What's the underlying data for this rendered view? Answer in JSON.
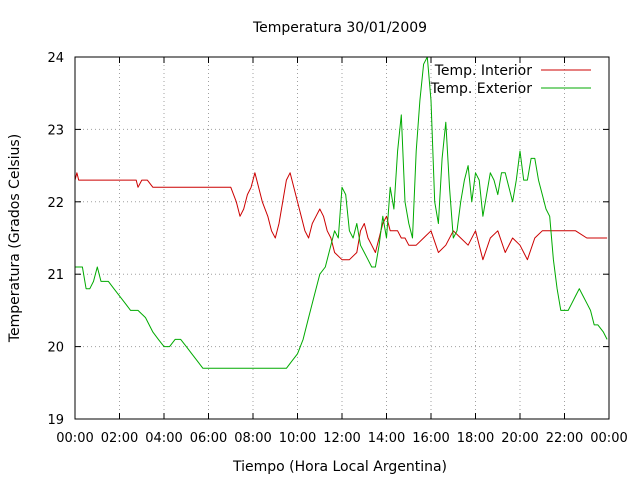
{
  "chart_data": {
    "type": "line",
    "title": "Temperatura 30/01/2009",
    "xlabel": "Tiempo (Hora Local Argentina)",
    "ylabel": "Temperatura (Grados Celsius)",
    "xlim": [
      "00:00",
      "24:00"
    ],
    "ylim": [
      19,
      24
    ],
    "grid": true,
    "legend_position": "top-right",
    "x_tick_labels": [
      "00:00",
      "02:00",
      "04:00",
      "06:00",
      "08:00",
      "10:00",
      "12:00",
      "14:00",
      "16:00",
      "18:00",
      "20:00",
      "22:00",
      "00:00"
    ],
    "y_tick_labels": [
      "19",
      "20",
      "21",
      "22",
      "23",
      "24"
    ],
    "series": [
      {
        "name": "Temp. Interior",
        "color": "#cc0000",
        "x": [
          "00:00",
          "00:05",
          "00:10",
          "00:15",
          "02:45",
          "02:50",
          "03:00",
          "03:15",
          "03:30",
          "03:45",
          "04:00",
          "05:30",
          "07:00",
          "07:15",
          "07:25",
          "07:35",
          "07:45",
          "07:55",
          "08:05",
          "08:15",
          "08:25",
          "08:40",
          "08:50",
          "09:00",
          "09:10",
          "09:20",
          "09:30",
          "09:40",
          "09:50",
          "10:00",
          "10:10",
          "10:20",
          "10:30",
          "10:40",
          "10:50",
          "11:00",
          "11:10",
          "11:20",
          "11:30",
          "11:40",
          "12:00",
          "12:20",
          "12:40",
          "12:50",
          "13:00",
          "13:10",
          "13:20",
          "13:30",
          "13:40",
          "13:50",
          "14:00",
          "14:10",
          "14:20",
          "14:30",
          "14:40",
          "14:50",
          "15:00",
          "15:20",
          "15:40",
          "16:00",
          "16:20",
          "16:40",
          "17:00",
          "17:20",
          "17:40",
          "18:00",
          "18:20",
          "18:40",
          "19:00",
          "19:20",
          "19:40",
          "20:00",
          "20:20",
          "20:40",
          "21:00",
          "21:20",
          "21:40",
          "22:00",
          "22:30",
          "23:00",
          "23:30",
          "23:55"
        ],
        "y": [
          22.3,
          22.4,
          22.3,
          22.3,
          22.3,
          22.2,
          22.3,
          22.3,
          22.2,
          22.2,
          22.2,
          22.2,
          22.2,
          22.0,
          21.8,
          21.9,
          22.1,
          22.2,
          22.4,
          22.2,
          22.0,
          21.8,
          21.6,
          21.5,
          21.7,
          22.0,
          22.3,
          22.4,
          22.2,
          22.0,
          21.8,
          21.6,
          21.5,
          21.7,
          21.8,
          21.9,
          21.8,
          21.6,
          21.5,
          21.3,
          21.2,
          21.2,
          21.3,
          21.6,
          21.7,
          21.5,
          21.4,
          21.3,
          21.5,
          21.7,
          21.8,
          21.6,
          21.6,
          21.6,
          21.5,
          21.5,
          21.4,
          21.4,
          21.5,
          21.6,
          21.3,
          21.4,
          21.6,
          21.5,
          21.4,
          21.6,
          21.2,
          21.5,
          21.6,
          21.3,
          21.5,
          21.4,
          21.2,
          21.5,
          21.6,
          21.6,
          21.6,
          21.6,
          21.6,
          21.5,
          21.5,
          21.5
        ]
      },
      {
        "name": "Temp. Exterior",
        "color": "#00aa00",
        "x": [
          "00:00",
          "00:20",
          "00:30",
          "00:40",
          "00:50",
          "01:00",
          "01:10",
          "01:30",
          "01:45",
          "02:00",
          "02:15",
          "02:30",
          "02:50",
          "03:10",
          "03:30",
          "03:45",
          "04:00",
          "04:15",
          "04:30",
          "04:45",
          "05:00",
          "05:15",
          "05:30",
          "05:45",
          "06:00",
          "07:00",
          "08:00",
          "09:00",
          "09:30",
          "09:45",
          "10:00",
          "10:15",
          "10:30",
          "10:45",
          "11:00",
          "11:15",
          "11:30",
          "11:40",
          "11:50",
          "12:00",
          "12:10",
          "12:20",
          "12:30",
          "12:40",
          "12:50",
          "13:00",
          "13:10",
          "13:20",
          "13:30",
          "13:40",
          "13:50",
          "14:00",
          "14:10",
          "14:20",
          "14:30",
          "14:40",
          "14:50",
          "15:00",
          "15:10",
          "15:20",
          "15:30",
          "15:40",
          "15:50",
          "16:00",
          "16:10",
          "16:20",
          "16:30",
          "16:40",
          "16:50",
          "17:00",
          "17:10",
          "17:20",
          "17:30",
          "17:40",
          "17:50",
          "18:00",
          "18:10",
          "18:20",
          "18:30",
          "18:40",
          "18:50",
          "19:00",
          "19:10",
          "19:20",
          "19:30",
          "19:40",
          "19:50",
          "20:00",
          "20:10",
          "20:20",
          "20:30",
          "20:40",
          "20:50",
          "21:00",
          "21:10",
          "21:20",
          "21:30",
          "21:40",
          "21:50",
          "22:00",
          "22:10",
          "22:20",
          "22:30",
          "22:40",
          "22:50",
          "23:00",
          "23:10",
          "23:20",
          "23:30",
          "23:45",
          "23:55"
        ],
        "y": [
          21.1,
          21.1,
          20.8,
          20.8,
          20.9,
          21.1,
          20.9,
          20.9,
          20.8,
          20.7,
          20.6,
          20.5,
          20.5,
          20.4,
          20.2,
          20.1,
          20.0,
          20.0,
          20.1,
          20.1,
          20.0,
          19.9,
          19.8,
          19.7,
          19.7,
          19.7,
          19.7,
          19.7,
          19.7,
          19.8,
          19.9,
          20.1,
          20.4,
          20.7,
          21.0,
          21.1,
          21.4,
          21.6,
          21.5,
          22.2,
          22.1,
          21.6,
          21.5,
          21.7,
          21.4,
          21.3,
          21.2,
          21.1,
          21.1,
          21.4,
          21.8,
          21.5,
          22.2,
          21.9,
          22.7,
          23.2,
          22.0,
          21.7,
          21.5,
          22.7,
          23.4,
          23.9,
          24.0,
          23.4,
          22.0,
          21.7,
          22.6,
          23.1,
          22.2,
          21.5,
          21.6,
          22.0,
          22.3,
          22.5,
          22.0,
          22.4,
          22.3,
          21.8,
          22.1,
          22.4,
          22.3,
          22.1,
          22.4,
          22.4,
          22.2,
          22.0,
          22.3,
          22.7,
          22.3,
          22.3,
          22.6,
          22.6,
          22.3,
          22.1,
          21.9,
          21.8,
          21.2,
          20.8,
          20.5,
          20.5,
          20.5,
          20.6,
          20.7,
          20.8,
          20.7,
          20.6,
          20.5,
          20.3,
          20.3,
          20.2,
          20.1
        ]
      }
    ]
  }
}
